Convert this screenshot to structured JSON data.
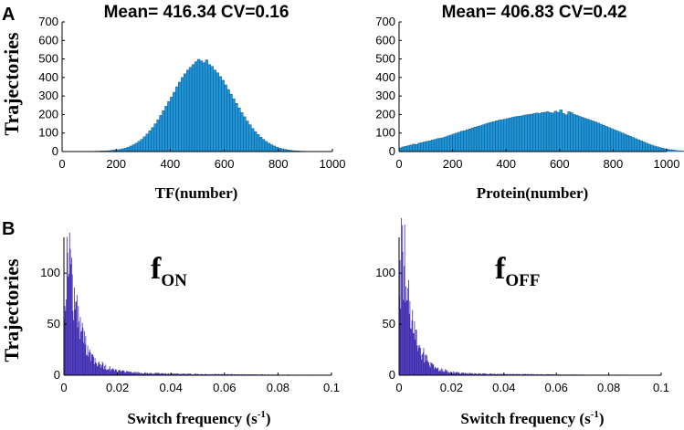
{
  "panel_labels": [
    "A",
    "B"
  ],
  "row_ylabel": "Trajectories",
  "colors": {
    "histA": "#1f94d6",
    "histA_edge": "#0a4a7a",
    "histB": "#3d2ab0",
    "axis": "#000000"
  },
  "chart_data": [
    {
      "type": "bar",
      "title": "Mean= 416.34  CV=0.16",
      "xlabel": "TF(number)",
      "xlim": [
        0,
        1000
      ],
      "ylim": [
        0,
        700
      ],
      "xticks": [
        "0",
        "200",
        "400",
        "600",
        "800",
        "1000"
      ],
      "yticks": [
        "0",
        "100",
        "200",
        "300",
        "400",
        "500",
        "600",
        "700"
      ],
      "bin_width": 10,
      "bin_start": 90,
      "values": [
        1,
        1,
        1,
        2,
        2,
        3,
        3,
        4,
        5,
        6,
        8,
        10,
        12,
        15,
        19,
        24,
        30,
        37,
        45,
        55,
        66,
        80,
        95,
        112,
        130,
        150,
        172,
        195,
        220,
        245,
        270,
        295,
        320,
        350,
        375,
        400,
        420,
        440,
        455,
        470,
        485,
        498,
        490,
        480,
        495,
        470,
        460,
        440,
        425,
        405,
        385,
        360,
        335,
        310,
        285,
        260,
        235,
        210,
        188,
        165,
        145,
        125,
        108,
        92,
        78,
        66,
        55,
        45,
        37,
        30,
        24,
        19,
        15,
        12,
        9,
        7,
        5,
        4,
        3,
        2,
        2,
        1,
        1,
        1,
        1,
        1,
        1,
        1,
        1,
        1,
        1
      ]
    },
    {
      "type": "bar",
      "title": "Mean= 406.83  CV=0.42",
      "xlabel": "Protein(number)",
      "xlim": [
        0,
        1000
      ],
      "ylim": [
        0,
        700
      ],
      "xticks": [
        "0",
        "200",
        "400",
        "600",
        "800",
        "1000"
      ],
      "yticks": [
        "0",
        "100",
        "200",
        "300",
        "400",
        "500",
        "600",
        "700"
      ],
      "bin_width": 10,
      "bin_start": 0,
      "values": [
        20,
        25,
        28,
        32,
        36,
        40,
        38,
        45,
        48,
        52,
        55,
        58,
        62,
        66,
        70,
        72,
        75,
        80,
        85,
        90,
        95,
        100,
        105,
        110,
        112,
        118,
        122,
        128,
        132,
        136,
        140,
        145,
        150,
        155,
        158,
        162,
        166,
        170,
        172,
        175,
        178,
        182,
        185,
        188,
        190,
        192,
        195,
        198,
        200,
        202,
        205,
        208,
        206,
        210,
        212,
        215,
        210,
        208,
        218,
        212,
        225,
        205,
        198,
        215,
        210,
        200,
        196,
        190,
        185,
        180,
        175,
        170,
        165,
        160,
        154,
        148,
        142,
        136,
        130,
        124,
        118,
        112,
        106,
        100,
        94,
        88,
        82,
        76,
        70,
        64,
        58,
        52,
        46,
        40,
        35,
        30,
        26,
        22,
        18,
        15,
        12,
        10,
        8,
        6,
        5,
        4,
        3,
        2,
        2,
        1,
        1,
        1,
        1,
        1,
        1,
        1
      ]
    },
    {
      "type": "bar",
      "subtype": "dense-histogram",
      "label_main": "f",
      "label_sub": "ON",
      "xlabel": "Switch frequency (s",
      "xlabel_sup": "-1",
      "xlabel_end": ")",
      "xlim": [
        0,
        0.1
      ],
      "ylim": [
        0,
        135
      ],
      "xticks": [
        "0",
        "0.02",
        "0.04",
        "0.06",
        "0.08",
        "0.1"
      ],
      "yticks": [
        "0",
        "50",
        "100"
      ],
      "peak": 122,
      "peak_x": 0.0015,
      "decay_scale": 0.0045,
      "tail_level": 4
    },
    {
      "type": "bar",
      "subtype": "dense-histogram",
      "label_main": "f",
      "label_sub": "OFF",
      "xlabel": "Switch frequency (s",
      "xlabel_sup": "-1",
      "xlabel_end": ")",
      "xlim": [
        0,
        0.1
      ],
      "ylim": [
        0,
        135
      ],
      "xticks": [
        "0",
        "0.02",
        "0.04",
        "0.06",
        "0.08",
        "0.1"
      ],
      "yticks": [
        "0",
        "50",
        "100"
      ],
      "peak": 132,
      "peak_x": 0.0012,
      "decay_scale": 0.004,
      "tail_level": 3
    }
  ]
}
